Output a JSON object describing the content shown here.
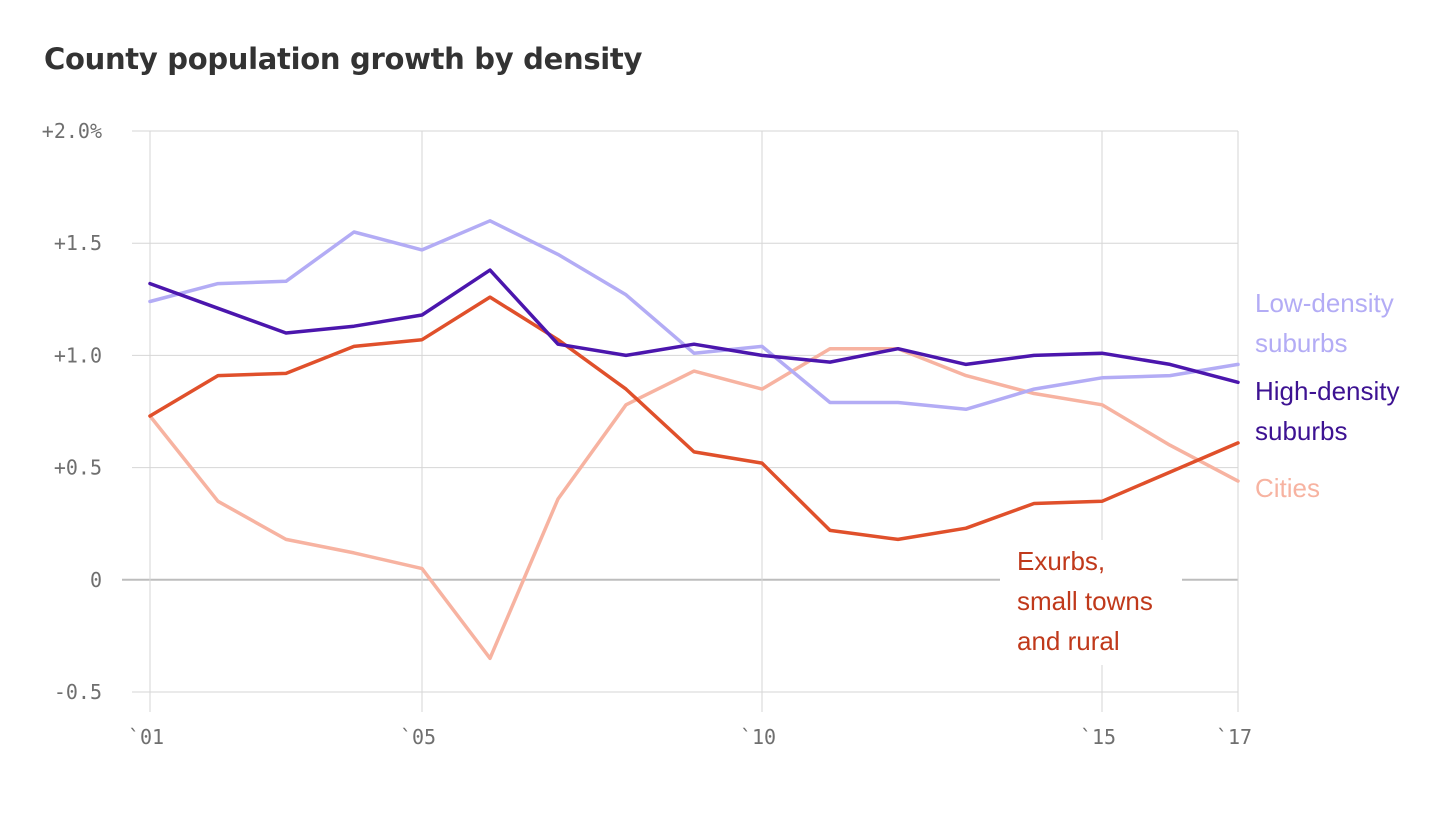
{
  "title": "County population growth by density",
  "chart_data": {
    "type": "line",
    "title": "County population growth by density",
    "xlabel": "",
    "ylabel": "",
    "x": [
      2001,
      2002,
      2003,
      2004,
      2005,
      2006,
      2007,
      2008,
      2009,
      2010,
      2011,
      2012,
      2013,
      2014,
      2015,
      2016,
      2017
    ],
    "xlim": [
      2001,
      2017
    ],
    "ylim": [
      -0.5,
      2.0
    ],
    "grid": true,
    "x_ticks": [
      {
        "value": 2001,
        "label": "`01"
      },
      {
        "value": 2005,
        "label": "`05"
      },
      {
        "value": 2010,
        "label": "`10"
      },
      {
        "value": 2015,
        "label": "`15"
      },
      {
        "value": 2017,
        "label": "`17"
      }
    ],
    "y_ticks": [
      {
        "value": 2.0,
        "label": "+2.0%"
      },
      {
        "value": 1.5,
        "label": "+1.5"
      },
      {
        "value": 1.0,
        "label": "+1.0"
      },
      {
        "value": 0.5,
        "label": "+0.5"
      },
      {
        "value": 0,
        "label": "0"
      },
      {
        "value": -0.5,
        "label": "-0.5"
      }
    ],
    "series": [
      {
        "name": "Cities",
        "label_lines": [
          "Cities"
        ],
        "color": "#f7b3a1",
        "values": [
          0.73,
          0.35,
          0.18,
          0.12,
          0.05,
          -0.35,
          0.36,
          0.78,
          0.93,
          0.85,
          1.03,
          1.03,
          0.91,
          0.83,
          0.78,
          0.6,
          0.44
        ]
      },
      {
        "name": "Exurbs, small towns and rural",
        "label_lines": [
          "Exurbs,",
          "small towns",
          "and rural"
        ],
        "color": "#e0502b",
        "label_color": "#c0391b",
        "values": [
          0.73,
          0.91,
          0.92,
          1.04,
          1.07,
          1.26,
          1.07,
          0.85,
          0.57,
          0.52,
          0.22,
          0.18,
          0.23,
          0.34,
          0.35,
          0.48,
          0.61
        ]
      },
      {
        "name": "Low-density suburbs",
        "label_lines": [
          "Low-density",
          "suburbs"
        ],
        "color": "#b3acf5",
        "values": [
          1.24,
          1.32,
          1.33,
          1.55,
          1.47,
          1.6,
          1.45,
          1.27,
          1.01,
          1.04,
          0.79,
          0.79,
          0.76,
          0.85,
          0.9,
          0.91,
          0.96
        ]
      },
      {
        "name": "High-density suburbs",
        "label_lines": [
          "High-density",
          "suburbs"
        ],
        "color": "#4b16ad",
        "label_color": "#3d1292",
        "values": [
          1.32,
          1.21,
          1.1,
          1.13,
          1.18,
          1.38,
          1.05,
          1.0,
          1.05,
          1.0,
          0.97,
          1.03,
          0.96,
          1.0,
          1.01,
          0.96,
          0.88
        ]
      }
    ]
  }
}
